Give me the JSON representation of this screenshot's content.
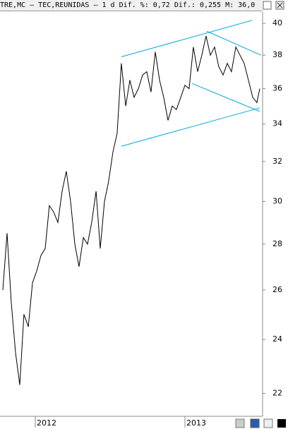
{
  "chart_data": {
    "type": "line",
    "title": "TRE,MC – TEC,REUNIDAS –  1 d Dif. %: 0,72 Dif.: 0,255 M: 36,0",
    "log_scale": true,
    "x": [
      2011.783,
      2011.811,
      2011.839,
      2011.868,
      2011.896,
      2011.924,
      2011.953,
      2011.981,
      2012.009,
      2012.038,
      2012.066,
      2012.094,
      2012.122,
      2012.151,
      2012.179,
      2012.207,
      2012.236,
      2012.264,
      2012.292,
      2012.321,
      2012.349,
      2012.377,
      2012.406,
      2012.434,
      2012.462,
      2012.49,
      2012.519,
      2012.547,
      2012.575,
      2012.604,
      2012.632,
      2012.66,
      2012.689,
      2012.717,
      2012.745,
      2012.773,
      2012.802,
      2012.83,
      2012.858,
      2012.887,
      2012.915,
      2012.943,
      2012.972,
      2013.0,
      2013.028,
      2013.056,
      2013.085,
      2013.113,
      2013.141,
      2013.17,
      2013.198,
      2013.226,
      2013.255,
      2013.283,
      2013.311,
      2013.34,
      2013.368,
      2013.396,
      2013.424,
      2013.453,
      2013.481,
      2013.5
    ],
    "series": [
      {
        "color": "#000000",
        "values": [
          26,
          28.5,
          25.5,
          23.5,
          22.3,
          25,
          24.5,
          26.3,
          26.8,
          27.5,
          27.8,
          29.8,
          29.5,
          29,
          30.5,
          31.5,
          30,
          28,
          27,
          28.3,
          28,
          29,
          30.5,
          27.8,
          30,
          31,
          32.5,
          33.5,
          37.5,
          35,
          36.5,
          35.5,
          36,
          36.8,
          37,
          35.8,
          38.2,
          36.5,
          35.5,
          34.2,
          35,
          34.8,
          35.5,
          36.2,
          36,
          38.5,
          37,
          38,
          39.2,
          38,
          38.5,
          37.3,
          36.8,
          37.5,
          37,
          38.5,
          38,
          37.5,
          36.5,
          35.5,
          35.2,
          36
        ]
      }
    ],
    "trendlines": [
      {
        "color": "#00aadd",
        "x": [
          2012.575,
          2013.448
        ],
        "y": [
          37.9,
          40.2
        ]
      },
      {
        "color": "#00aadd",
        "x": [
          2012.575,
          2013.5
        ],
        "y": [
          32.8,
          34.9
        ]
      },
      {
        "color": "#00aadd",
        "x": [
          2013.146,
          2013.509
        ],
        "y": [
          39.5,
          38.0
        ]
      },
      {
        "color": "#00aadd",
        "x": [
          2013.047,
          2013.5
        ],
        "y": [
          36.3,
          34.7
        ]
      }
    ],
    "xlim": [
      2011.764,
      2013.519
    ],
    "xticks": [
      {
        "value": 2012,
        "label": "2012"
      },
      {
        "value": 2013,
        "label": "2013"
      }
    ],
    "ylim": [
      21.2,
      40.7
    ],
    "yticks": [
      22,
      24,
      26,
      28,
      30,
      32,
      34,
      36,
      38,
      40
    ]
  }
}
